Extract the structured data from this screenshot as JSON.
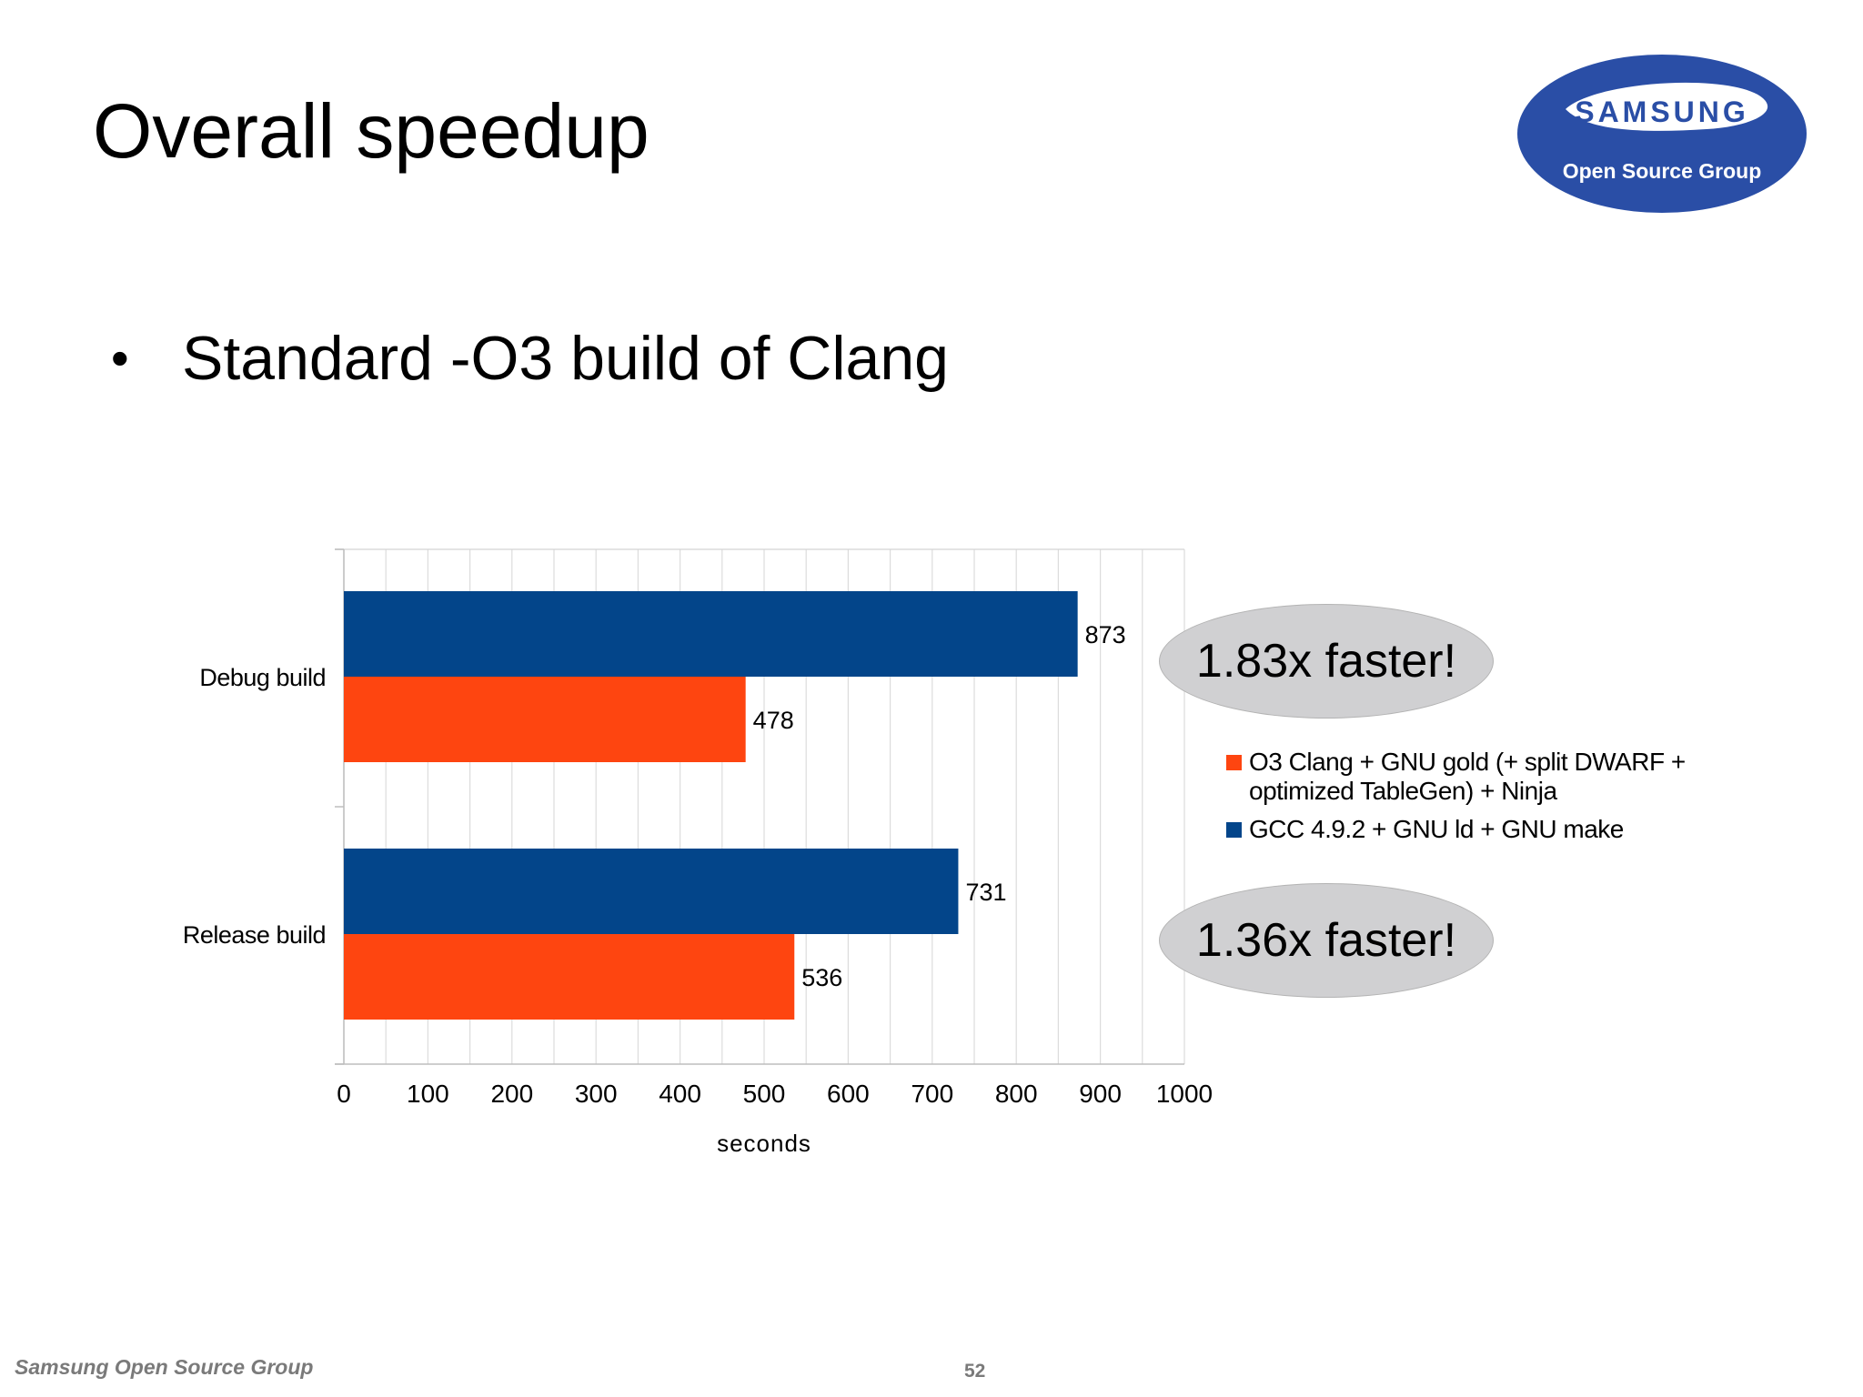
{
  "slide": {
    "title": "Overall speedup",
    "bullet": "Standard -O3 build of Clang",
    "footer_org": "Samsung Open Source Group",
    "page_number": "52"
  },
  "logo": {
    "brand": "SAMSUNG",
    "tagline": "Open Source Group",
    "color": "#2a4ea6"
  },
  "callouts": [
    {
      "text": "1.83x faster!"
    },
    {
      "text": "1.36x faster!"
    }
  ],
  "chart_data": {
    "type": "bar",
    "orientation": "horizontal",
    "categories": [
      "Debug build",
      "Release build"
    ],
    "series": [
      {
        "name": "GCC 4.9.2 + GNU ld + GNU make",
        "values": [
          873,
          731
        ],
        "color": "#03458a"
      },
      {
        "name": "O3 Clang + GNU gold (+ split DWARF + optimized TableGen) + Ninja",
        "values": [
          478,
          536
        ],
        "color": "#fe4510"
      }
    ],
    "legend_order": [
      1,
      0
    ],
    "xlabel": "seconds",
    "xlim": [
      0,
      1000
    ],
    "xticks": [
      0,
      100,
      200,
      300,
      400,
      500,
      600,
      700,
      800,
      900,
      1000
    ],
    "grid": true,
    "data_labels": true,
    "legend_position": "right"
  }
}
